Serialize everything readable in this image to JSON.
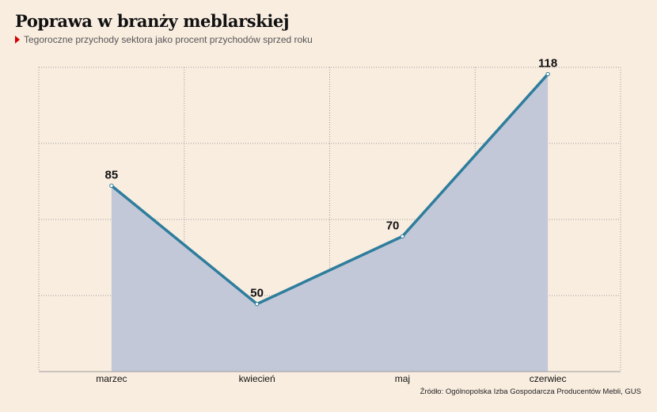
{
  "header": {
    "title": "Poprawa w branży meblarskiej",
    "subtitle": "Tegoroczne przychody sektora jako procent przychodów sprzed roku"
  },
  "footer": {
    "source": "Źródło: Ogólnopolska Izba Gospodarcza Producentów Mebli, GUS"
  },
  "colors": {
    "background": "#f9ede0",
    "line": "#2e7d9c",
    "area": "#c2c8d8",
    "marker": "#d40000"
  },
  "chart_data": {
    "type": "area",
    "title": "Poprawa w branży meblarskiej",
    "subtitle": "Tegoroczne przychody sektora jako procent przychodów sprzed roku",
    "categories": [
      "marzec",
      "kwiecień",
      "maj",
      "czerwiec"
    ],
    "series": [
      {
        "values": [
          85,
          50,
          70,
          118
        ]
      }
    ],
    "data_labels": [
      "85",
      "50",
      "70",
      "118"
    ],
    "xlabel": "",
    "ylabel": "",
    "ylim": [
      30,
      120
    ],
    "grid": true,
    "legend": "none"
  }
}
